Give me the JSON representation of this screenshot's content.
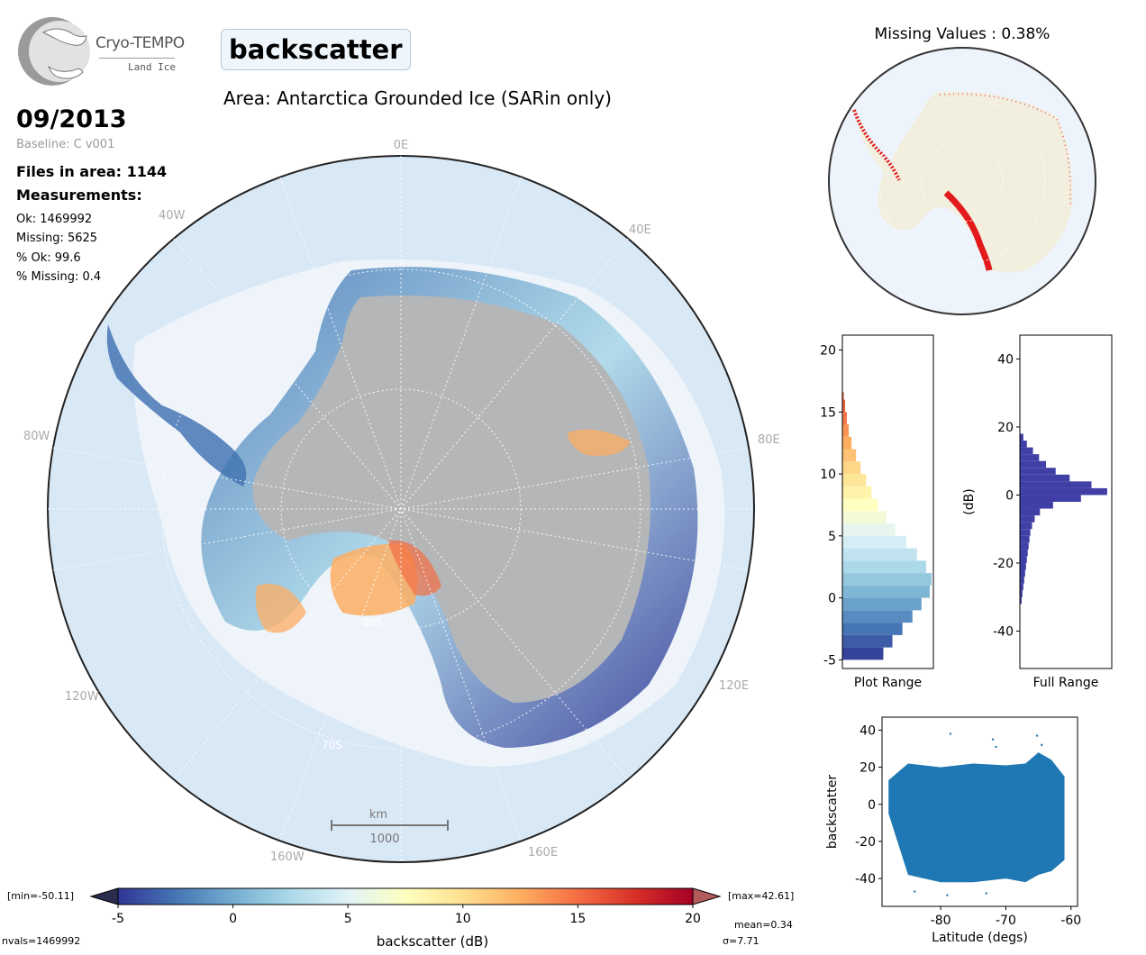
{
  "logo": {
    "name": "Cryo-TEMPO",
    "subtitle": "Land Ice"
  },
  "variable": "backscatter",
  "area_title": "Area: Antarctica Grounded Ice (SARin only)",
  "date": "09/2013",
  "baseline": "Baseline: C v001",
  "files_in_area": "Files in area: 1144",
  "measurements_title": "Measurements:",
  "stats": [
    "Ok: 1469992",
    "Missing: 5625",
    "% Ok: 99.6",
    "% Missing: 0.4"
  ],
  "main_map": {
    "longitude_labels": [
      "0E",
      "40E",
      "80E",
      "120E",
      "160E",
      "160W",
      "120W",
      "80W",
      "40W"
    ],
    "latitude_labels": [
      "80S",
      "70S"
    ],
    "scalebar": {
      "unit": "km",
      "value": "1000"
    },
    "colors": {
      "ocean": "#d9e8f5",
      "ice": "#b4b6b8",
      "outline": "#222222"
    }
  },
  "missing_map": {
    "title": "Missing Values : 0.38%",
    "colors": {
      "land": "#f2efdf",
      "missing": "#e31a1c"
    }
  },
  "colorbar": {
    "label": "backscatter (dB)",
    "ticks": [
      "-5",
      "0",
      "5",
      "10",
      "15",
      "20"
    ],
    "min_label": "[min=-50.11]",
    "max_label": "[max=42.61]",
    "colormap": [
      "#313695",
      "#4575b4",
      "#74add1",
      "#abd9e9",
      "#e0f3f8",
      "#ffffbf",
      "#fee090",
      "#fdae61",
      "#f46d43",
      "#d73027",
      "#a50026"
    ]
  },
  "footer": {
    "nvals": "nvals=1469992",
    "mean": "mean=0.34",
    "sigma": "σ=7.71"
  },
  "chart_data": [
    {
      "type": "bar",
      "orientation": "horizontal",
      "xlabel": "Plot Range",
      "ylabel": "",
      "ylim": [
        -5.7,
        21.2
      ],
      "yticks": [
        -5,
        0,
        5,
        10,
        15,
        20
      ],
      "bins_y": [
        -5,
        -4,
        -3,
        -2,
        -1,
        0,
        1,
        2,
        3,
        4,
        5,
        6,
        7,
        8,
        9,
        10,
        11,
        12,
        13,
        14,
        15,
        16,
        16.6
      ],
      "relative_counts": [
        0.45,
        0.55,
        0.66,
        0.77,
        0.87,
        0.96,
        0.98,
        0.92,
        0.82,
        0.7,
        0.58,
        0.48,
        0.39,
        0.32,
        0.26,
        0.2,
        0.15,
        0.1,
        0.07,
        0.05,
        0.03,
        0.015,
        0.0
      ]
    },
    {
      "type": "bar",
      "orientation": "horizontal",
      "xlabel": "Full Range",
      "ylabel": "(dB)",
      "ylim": [
        -51,
        47
      ],
      "yticks": [
        -40,
        -20,
        0,
        20,
        40
      ],
      "bins_y": [
        -32,
        -30,
        -28,
        -26,
        -24,
        -22,
        -20,
        -18,
        -16,
        -14,
        -12,
        -10,
        -8,
        -6,
        -4,
        -2,
        0,
        2,
        4,
        6,
        8,
        10,
        12,
        14,
        16,
        18
      ],
      "relative_counts": [
        0.02,
        0.03,
        0.04,
        0.05,
        0.06,
        0.07,
        0.08,
        0.09,
        0.1,
        0.11,
        0.12,
        0.14,
        0.17,
        0.23,
        0.38,
        0.7,
        1.0,
        0.82,
        0.57,
        0.41,
        0.3,
        0.22,
        0.15,
        0.08,
        0.04,
        0.02
      ],
      "color": "#3f3fa6"
    },
    {
      "type": "scatter",
      "xlabel": "Latitude (degs)",
      "ylabel": "backscatter",
      "xlim": [
        -89,
        -59
      ],
      "ylim": [
        -55,
        47
      ],
      "xticks": [
        -80,
        -70,
        -60
      ],
      "yticks": [
        -40,
        -20,
        0,
        20,
        40
      ],
      "color": "#1f77b4",
      "band_upper": [
        [
          -88,
          13
        ],
        [
          -85,
          22
        ],
        [
          -80,
          20
        ],
        [
          -75,
          22
        ],
        [
          -70,
          21
        ],
        [
          -67,
          22
        ],
        [
          -65,
          28
        ],
        [
          -63,
          24
        ],
        [
          -61,
          15
        ]
      ],
      "band_lower": [
        [
          -88,
          -5
        ],
        [
          -85,
          -38
        ],
        [
          -80,
          -42
        ],
        [
          -75,
          -42
        ],
        [
          -70,
          -40
        ],
        [
          -67,
          -42
        ],
        [
          -65,
          -38
        ],
        [
          -63,
          -36
        ],
        [
          -61,
          -30
        ]
      ],
      "outliers": [
        [
          -78.5,
          38
        ],
        [
          -72,
          35
        ],
        [
          -71.5,
          31
        ],
        [
          -65.2,
          37
        ],
        [
          -64.5,
          32
        ],
        [
          -73,
          -48
        ],
        [
          -79,
          -49
        ],
        [
          -84,
          -47
        ]
      ]
    }
  ]
}
